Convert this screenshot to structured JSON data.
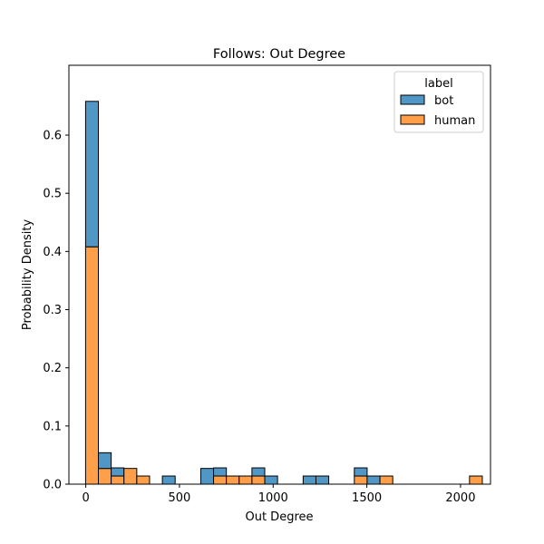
{
  "chart_data": {
    "type": "bar",
    "title": "Follows: Out Degree",
    "xlabel": "Out Degree",
    "ylabel": "Probability Density",
    "xlim": [
      -90,
      2160
    ],
    "ylim": [
      0,
      0.72
    ],
    "x_ticks": [
      0,
      500,
      1000,
      1500,
      2000
    ],
    "y_ticks": [
      0.0,
      0.1,
      0.2,
      0.3,
      0.4,
      0.5,
      0.6
    ],
    "bin_width": 68.3,
    "bin_start": -1,
    "stacked": true,
    "grid": false,
    "legend": {
      "title": "label",
      "placement": "top-right"
    },
    "series": [
      {
        "name": "human",
        "color": "#ff9f4a",
        "values": [
          0.408,
          0.027,
          0.014,
          0.027,
          0.014,
          0,
          0,
          0,
          0,
          0,
          0.014,
          0.014,
          0.014,
          0.014,
          0,
          0,
          0,
          0,
          0,
          0,
          0,
          0.014,
          0,
          0.014,
          0,
          0,
          0,
          0,
          0,
          0,
          0.014
        ]
      },
      {
        "name": "bot",
        "color": "#5097c6",
        "values": [
          0.25,
          0.027,
          0.014,
          0,
          0,
          0,
          0.014,
          0,
          0,
          0.027,
          0.014,
          0,
          0,
          0.014,
          0.014,
          0,
          0,
          0.014,
          0.014,
          0,
          0,
          0.014,
          0.014,
          0,
          0,
          0,
          0,
          0,
          0,
          0,
          0
        ]
      }
    ]
  }
}
